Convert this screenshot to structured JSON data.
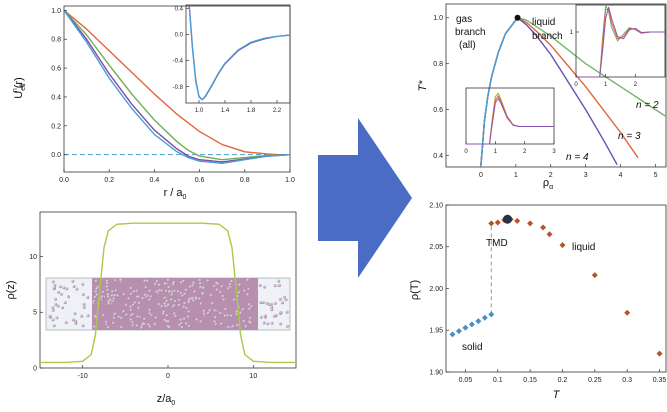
{
  "chart_data": [
    {
      "panel": "top-left",
      "type": "line",
      "ylabel": "U",
      "ylabel_sub": "eff",
      "ylabel_sup": "n",
      "ylabel_arg": "(r)",
      "xlabel": "r / a",
      "xlabel_sub": "0",
      "xlim": [
        0,
        1
      ],
      "ylim": [
        -0.12,
        1.03
      ],
      "x_ticks": [
        "0.0",
        "0.2",
        "0.4",
        "0.6",
        "0.8",
        "1.0"
      ],
      "y_ticks": [
        "0.0",
        "0.2",
        "0.4",
        "0.6",
        "0.8",
        "1.0"
      ],
      "x_tick_values": [
        0,
        0.2,
        0.4,
        0.6,
        0.8,
        1.0
      ],
      "y_tick_values": [
        0,
        0.2,
        0.4,
        0.6,
        0.8,
        1.0
      ],
      "series": [
        {
          "color": "#e0673e",
          "x": [
            0,
            0.1,
            0.2,
            0.3,
            0.4,
            0.5,
            0.6,
            0.7,
            0.8,
            0.9,
            0.95,
            1.0
          ],
          "y": [
            1.0,
            0.87,
            0.72,
            0.57,
            0.42,
            0.28,
            0.16,
            0.07,
            0.02,
            0.005,
            0.0,
            0.0
          ]
        },
        {
          "color": "#6fae56",
          "x": [
            0,
            0.1,
            0.2,
            0.3,
            0.4,
            0.5,
            0.55,
            0.6,
            0.7,
            0.8,
            0.9,
            1.0
          ],
          "y": [
            1.0,
            0.83,
            0.62,
            0.42,
            0.24,
            0.09,
            0.03,
            -0.01,
            -0.035,
            -0.02,
            -0.005,
            0.0
          ]
        },
        {
          "color": "#7e4aa8",
          "x": [
            0,
            0.1,
            0.2,
            0.3,
            0.4,
            0.5,
            0.55,
            0.6,
            0.7,
            0.8,
            0.9,
            1.0
          ],
          "y": [
            1.0,
            0.8,
            0.56,
            0.35,
            0.17,
            0.04,
            -0.01,
            -0.035,
            -0.05,
            -0.03,
            -0.01,
            0.0
          ]
        },
        {
          "color": "#4a9ed4",
          "x": [
            0,
            0.1,
            0.2,
            0.3,
            0.4,
            0.5,
            0.55,
            0.6,
            0.7,
            0.8,
            0.9,
            1.0
          ],
          "y": [
            1.0,
            0.78,
            0.53,
            0.32,
            0.14,
            0.02,
            -0.02,
            -0.045,
            -0.06,
            -0.035,
            -0.01,
            0.0
          ]
        }
      ],
      "dashed_zero_line": true,
      "inset": {
        "type": "line",
        "xlim": [
          0.8,
          2.4
        ],
        "ylim": [
          -1.05,
          0.45
        ],
        "x_ticks": [
          "1.0",
          "1.4",
          "1.8",
          "2.2"
        ],
        "y_ticks": [
          "0.4",
          "0.0",
          "-0.4",
          "-0.8"
        ],
        "x_tick_values": [
          1.0,
          1.4,
          1.8,
          2.2
        ],
        "y_tick_values": [
          0.4,
          0.0,
          -0.4,
          -0.8
        ],
        "series": [
          {
            "color": "#7e4aa8",
            "x": [
              0.85,
              0.9,
              0.95,
              1.0,
              1.05,
              1.1,
              1.2,
              1.3,
              1.4,
              1.6,
              1.8,
              2.0,
              2.2,
              2.4
            ],
            "y": [
              0.45,
              -0.2,
              -0.7,
              -0.95,
              -1.0,
              -0.95,
              -0.78,
              -0.6,
              -0.45,
              -0.25,
              -0.13,
              -0.07,
              -0.03,
              -0.01
            ]
          },
          {
            "color": "#4a9ed4",
            "x": [
              0.85,
              0.9,
              0.95,
              1.0,
              1.05,
              1.1,
              1.2,
              1.3,
              1.4,
              1.6,
              1.8,
              2.0,
              2.2,
              2.4
            ],
            "y": [
              0.42,
              -0.22,
              -0.72,
              -0.96,
              -1.0,
              -0.94,
              -0.77,
              -0.59,
              -0.44,
              -0.24,
              -0.12,
              -0.06,
              -0.03,
              -0.01
            ]
          }
        ]
      }
    },
    {
      "panel": "bottom-left",
      "type": "line",
      "ylabel": "ρ(z)",
      "xlabel": "z/a",
      "xlabel_sub": "0",
      "xlim": [
        -15,
        15
      ],
      "ylim": [
        0,
        14
      ],
      "x_ticks": [
        "-10",
        "0",
        "10"
      ],
      "y_ticks": [
        "0",
        "5",
        "10"
      ],
      "x_tick_values": [
        -10,
        0,
        10
      ],
      "y_tick_values": [
        0,
        5,
        10
      ],
      "series": [
        {
          "color": "#a9c94a",
          "x": [
            -15,
            -12,
            -10,
            -9,
            -8.5,
            -8,
            -7.5,
            -7,
            -6,
            -4,
            -2,
            0,
            2,
            4,
            6,
            7,
            7.5,
            8,
            8.5,
            9,
            10,
            12,
            15
          ],
          "y": [
            0.5,
            0.5,
            0.6,
            1.2,
            3,
            7,
            10.8,
            12.3,
            12.9,
            13.0,
            13.0,
            13.0,
            13.0,
            13.0,
            12.9,
            12.3,
            10.8,
            7,
            3,
            1.2,
            0.6,
            0.5,
            0.5
          ]
        }
      ],
      "simulation_image": "particle-slab-render"
    },
    {
      "panel": "top-right",
      "type": "line",
      "ylabel": "T*",
      "xlabel": "ρ",
      "xlabel_sub": "α",
      "xlim": [
        -1,
        5.3
      ],
      "ylim": [
        0.35,
        1.06
      ],
      "x_ticks": [
        "0",
        "1",
        "2",
        "3",
        "4",
        "5"
      ],
      "y_ticks": [
        "0.4",
        "0.6",
        "0.8",
        "1.0"
      ],
      "x_tick_values": [
        0,
        1,
        2,
        3,
        4,
        5
      ],
      "y_tick_values": [
        0.4,
        0.6,
        0.8,
        1.0
      ],
      "critical_point": {
        "x": 1.05,
        "y": 1.0
      },
      "annotations": [
        "gas",
        "branch",
        "(all)",
        "liquid",
        "branch",
        "n = 2",
        "n = 3",
        "n = 4"
      ],
      "series": [
        {
          "name": "n = 2",
          "color": "#78b36a",
          "x": [
            0.0,
            0.05,
            0.1,
            0.2,
            0.3,
            0.5,
            0.7,
            1.0,
            1.05,
            1.3,
            1.6,
            2.0,
            2.5,
            3.0,
            3.5,
            4.0,
            4.5,
            5.0,
            5.3
          ],
          "y": [
            0.36,
            0.45,
            0.55,
            0.66,
            0.74,
            0.85,
            0.93,
            0.99,
            1.0,
            0.99,
            0.96,
            0.92,
            0.86,
            0.8,
            0.75,
            0.7,
            0.65,
            0.6,
            0.57
          ]
        },
        {
          "name": "n = 3",
          "color": "#e0673e",
          "x": [
            0.0,
            0.05,
            0.1,
            0.2,
            0.3,
            0.5,
            0.7,
            1.0,
            1.05,
            1.3,
            1.6,
            2.0,
            2.5,
            3.0,
            3.5,
            4.0,
            4.5
          ],
          "y": [
            0.36,
            0.45,
            0.55,
            0.66,
            0.74,
            0.85,
            0.93,
            0.99,
            1.0,
            0.98,
            0.94,
            0.88,
            0.79,
            0.7,
            0.6,
            0.5,
            0.39
          ]
        },
        {
          "name": "n = 4",
          "color": "#6a4fb3",
          "x": [
            0.0,
            0.05,
            0.1,
            0.2,
            0.3,
            0.5,
            0.7,
            1.0,
            1.05,
            1.3,
            1.6,
            2.0,
            2.5,
            3.0,
            3.5,
            3.9
          ],
          "y": [
            0.36,
            0.45,
            0.55,
            0.66,
            0.74,
            0.85,
            0.93,
            0.99,
            1.0,
            0.97,
            0.92,
            0.84,
            0.72,
            0.6,
            0.47,
            0.36
          ]
        },
        {
          "color": "#4a9ed4",
          "x": [
            0.0,
            0.05,
            0.1,
            0.2,
            0.3,
            0.5,
            0.7,
            1.0,
            1.05
          ],
          "y": [
            0.36,
            0.45,
            0.55,
            0.66,
            0.74,
            0.85,
            0.93,
            0.99,
            1.0
          ]
        }
      ],
      "inset_top": {
        "type": "line",
        "xlim": [
          0,
          3
        ],
        "ylim": [
          0,
          1.6
        ],
        "x_ticks": [
          "0",
          "1",
          "2"
        ],
        "y_ticks": [
          "1"
        ],
        "x_tick_values": [
          0,
          1,
          2
        ],
        "y_tick_values": [
          1
        ],
        "series": [
          {
            "color": "#78b36a",
            "x": [
              0,
              0.8,
              0.9,
              1.0,
              1.1,
              1.2,
              1.4,
              1.6,
              1.8,
              2.0,
              2.2,
              2.5,
              3.0
            ],
            "y": [
              0,
              0,
              0.9,
              1.6,
              1.45,
              1.1,
              0.8,
              0.95,
              1.1,
              1.05,
              0.97,
              1.0,
              1.0
            ]
          },
          {
            "color": "#e0673e",
            "x": [
              0,
              0.8,
              0.9,
              1.0,
              1.1,
              1.2,
              1.4,
              1.6,
              1.8,
              2.0,
              2.2,
              2.5,
              3.0
            ],
            "y": [
              0,
              0,
              0.8,
              1.5,
              1.5,
              1.2,
              0.85,
              0.9,
              1.08,
              1.06,
              0.98,
              1.0,
              1.0
            ]
          },
          {
            "color": "#8a55b0",
            "x": [
              0,
              0.8,
              0.9,
              1.0,
              1.1,
              1.2,
              1.4,
              1.6,
              1.8,
              2.0,
              2.2,
              2.5,
              3.0
            ],
            "y": [
              0,
              0,
              0.6,
              1.3,
              1.55,
              1.3,
              0.9,
              0.85,
              1.05,
              1.08,
              0.99,
              1.0,
              1.0
            ]
          }
        ]
      },
      "inset_bottom": {
        "type": "line",
        "xlim": [
          0,
          3
        ],
        "ylim": [
          0,
          3.2
        ],
        "x_ticks": [
          "0",
          "1",
          "2",
          "3"
        ],
        "y_ticks": [],
        "x_tick_values": [
          0,
          1,
          2,
          3
        ],
        "y_tick_values": [],
        "series": [
          {
            "color": "#b6a12a",
            "x": [
              0,
              0.8,
              0.9,
              1.0,
              1.1,
              1.2,
              1.4,
              1.6,
              1.8,
              2.0,
              2.2,
              3.0
            ],
            "y": [
              0,
              0,
              1.5,
              2.7,
              2.9,
              2.5,
              1.6,
              1.1,
              1.0,
              1.0,
              1.0,
              1.0
            ]
          },
          {
            "color": "#e0673e",
            "x": [
              0,
              0.8,
              0.9,
              1.0,
              1.1,
              1.2,
              1.4,
              1.6,
              1.8,
              2.0,
              2.2,
              3.0
            ],
            "y": [
              0,
              0,
              1.3,
              2.5,
              2.75,
              2.4,
              1.55,
              1.1,
              1.0,
              1.0,
              1.0,
              1.0
            ]
          },
          {
            "color": "#8a55b0",
            "x": [
              0,
              0.8,
              0.9,
              1.0,
              1.1,
              1.2,
              1.4,
              1.6,
              1.8,
              2.0,
              2.2,
              3.0
            ],
            "y": [
              0,
              0,
              1.2,
              2.35,
              2.6,
              2.3,
              1.5,
              1.08,
              1.0,
              1.0,
              1.0,
              1.0
            ]
          }
        ]
      }
    },
    {
      "panel": "bottom-right",
      "type": "scatter",
      "ylabel": "ρ(T)",
      "xlabel": "T",
      "xlim": [
        0.02,
        0.36
      ],
      "ylim": [
        1.9,
        2.1
      ],
      "x_ticks": [
        "0.05",
        "0.1",
        "0.15",
        "0.2",
        "0.25",
        "0.3",
        "0.35"
      ],
      "y_ticks": [
        "1.90",
        "1.95",
        "2.00",
        "2.05",
        "2.10"
      ],
      "x_tick_values": [
        0.05,
        0.1,
        0.15,
        0.2,
        0.25,
        0.3,
        0.35
      ],
      "y_tick_values": [
        1.9,
        1.95,
        2.0,
        2.05,
        2.1
      ],
      "annotations": [
        "TMD",
        "liquid",
        "solid"
      ],
      "series": [
        {
          "color": "#4a8fc4",
          "marker": "diamond",
          "x": [
            0.03,
            0.04,
            0.05,
            0.06,
            0.07,
            0.08,
            0.09
          ],
          "y": [
            1.945,
            1.949,
            1.953,
            1.957,
            1.961,
            1.965,
            1.969
          ]
        },
        {
          "color": "#b5532a",
          "marker": "diamond",
          "x": [
            0.09,
            0.1,
            0.11,
            0.12,
            0.13,
            0.15,
            0.17,
            0.18,
            0.2,
            0.25,
            0.3,
            0.35
          ],
          "y": [
            2.078,
            2.079,
            2.082,
            2.083,
            2.081,
            2.078,
            2.073,
            2.065,
            2.052,
            2.016,
            1.971,
            1.922
          ]
        }
      ],
      "tmd_point": {
        "x": 0.115,
        "y": 2.083
      },
      "transition_line": {
        "x": [
          0.09,
          0.09
        ],
        "y": [
          1.969,
          2.078
        ]
      }
    }
  ]
}
